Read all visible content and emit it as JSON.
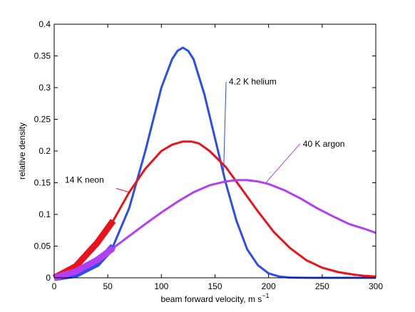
{
  "chart_data": {
    "type": "line",
    "xlabel": "beam forward velocity, m s",
    "xlabel_exponent": "−1",
    "ylabel": "relative density",
    "xlim": [
      0,
      300
    ],
    "ylim": [
      0,
      0.4
    ],
    "xticks": [
      "0",
      "50",
      "100",
      "150",
      "200",
      "250",
      "300"
    ],
    "yticks": [
      "0",
      "0.05",
      "0.1",
      "0.15",
      "0.2",
      "0.25",
      "0.3",
      "0.35",
      "0.4"
    ],
    "grid": false,
    "series": [
      {
        "name": "4.2 K helium",
        "color": "#2b4cf0",
        "x": [
          0,
          20,
          40,
          55,
          70,
          85,
          100,
          110,
          115,
          120,
          125,
          130,
          140,
          150,
          160,
          170,
          180,
          190,
          200,
          210,
          220,
          230,
          240,
          250,
          260,
          270,
          280,
          290,
          300
        ],
        "y": [
          0,
          0.005,
          0.022,
          0.05,
          0.11,
          0.2,
          0.3,
          0.345,
          0.358,
          0.363,
          0.358,
          0.345,
          0.29,
          0.22,
          0.15,
          0.09,
          0.045,
          0.02,
          0.007,
          0.002,
          0.0005,
          0.0001,
          0,
          0,
          0,
          0,
          0,
          0,
          0
        ],
        "thick_until": 55
      },
      {
        "name": "14 K neon",
        "color": "#e8131b",
        "x": [
          0,
          20,
          40,
          55,
          70,
          85,
          100,
          110,
          120,
          128,
          135,
          145,
          160,
          175,
          190,
          205,
          220,
          235,
          250,
          265,
          280,
          290,
          300
        ],
        "y": [
          0,
          0.018,
          0.055,
          0.09,
          0.135,
          0.172,
          0.2,
          0.21,
          0.215,
          0.215,
          0.212,
          0.2,
          0.175,
          0.14,
          0.105,
          0.072,
          0.047,
          0.028,
          0.016,
          0.009,
          0.005,
          0.003,
          0.002
        ],
        "thick_until": 55
      },
      {
        "name": "40 K argon",
        "color": "#b040f0",
        "x": [
          0,
          20,
          40,
          55,
          70,
          85,
          100,
          115,
          130,
          145,
          160,
          170,
          180,
          190,
          200,
          215,
          230,
          245,
          260,
          275,
          290,
          300
        ],
        "y": [
          0,
          0.01,
          0.028,
          0.047,
          0.066,
          0.085,
          0.103,
          0.12,
          0.135,
          0.146,
          0.152,
          0.154,
          0.154,
          0.152,
          0.148,
          0.138,
          0.125,
          0.11,
          0.097,
          0.085,
          0.077,
          0.071
        ],
        "thick_until": 55
      }
    ],
    "annotations": [
      {
        "text": "4.2 K helium",
        "series": 0,
        "at_x": 158,
        "label_x": 163,
        "label_y": 0.305
      },
      {
        "text": "40 K argon",
        "series": 2,
        "at_x": 197,
        "label_x": 232,
        "label_y": 0.207
      },
      {
        "text": "14 K neon",
        "series": 1,
        "at_x": 70,
        "label_x": 10,
        "label_y": 0.15
      }
    ]
  }
}
